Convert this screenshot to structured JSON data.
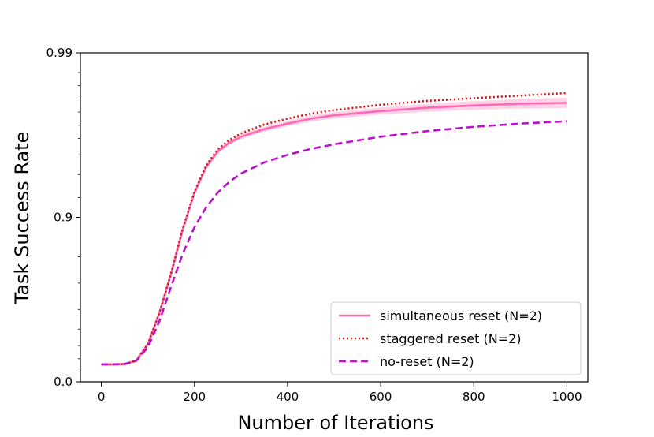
{
  "chart_data": {
    "type": "line",
    "title": "",
    "xlabel": "Number of Iterations",
    "ylabel": "Task Success Rate",
    "y_scale": "logit",
    "xlim": [
      -45,
      1045
    ],
    "ylim": [
      0.0,
      0.99
    ],
    "x_ticks": [
      0,
      200,
      400,
      600,
      800,
      1000
    ],
    "x_tick_labels": [
      "0",
      "200",
      "400",
      "600",
      "800",
      "1000"
    ],
    "y_ticks": [
      0.0,
      0.9,
      0.99
    ],
    "y_tick_labels": [
      "0.0",
      "0.9",
      "0.99"
    ],
    "legend_position": "lower-right",
    "series": [
      {
        "name": "simultaneous reset (N=2)",
        "color": "#ff69b4",
        "style": "solid",
        "band": true,
        "x": [
          0,
          25,
          50,
          75,
          100,
          125,
          150,
          175,
          200,
          225,
          250,
          275,
          300,
          350,
          400,
          450,
          500,
          600,
          700,
          800,
          900,
          1000
        ],
        "y_axis_fraction": [
          0.053,
          0.053,
          0.054,
          0.064,
          0.115,
          0.21,
          0.33,
          0.465,
          0.575,
          0.652,
          0.7,
          0.727,
          0.745,
          0.768,
          0.785,
          0.8,
          0.81,
          0.823,
          0.833,
          0.84,
          0.845,
          0.848
        ]
      },
      {
        "name": "staggered reset (N=2)",
        "color": "#dd1111",
        "style": "dotted",
        "band": false,
        "x": [
          0,
          25,
          50,
          75,
          100,
          125,
          150,
          175,
          200,
          225,
          250,
          275,
          300,
          350,
          400,
          450,
          500,
          600,
          700,
          800,
          900,
          1000
        ],
        "y_axis_fraction": [
          0.053,
          0.053,
          0.054,
          0.064,
          0.115,
          0.21,
          0.33,
          0.465,
          0.578,
          0.657,
          0.707,
          0.735,
          0.755,
          0.782,
          0.8,
          0.815,
          0.826,
          0.842,
          0.854,
          0.862,
          0.87,
          0.878
        ]
      },
      {
        "name": "no-reset (N=2)",
        "color": "#bb11cc",
        "style": "dashed",
        "band": false,
        "x": [
          0,
          25,
          50,
          75,
          100,
          125,
          150,
          175,
          200,
          225,
          250,
          275,
          300,
          350,
          400,
          450,
          500,
          600,
          700,
          800,
          900,
          1000
        ],
        "y_axis_fraction": [
          0.053,
          0.053,
          0.054,
          0.064,
          0.105,
          0.185,
          0.29,
          0.39,
          0.47,
          0.53,
          0.575,
          0.608,
          0.633,
          0.667,
          0.69,
          0.708,
          0.722,
          0.745,
          0.762,
          0.775,
          0.785,
          0.792
        ]
      }
    ]
  }
}
